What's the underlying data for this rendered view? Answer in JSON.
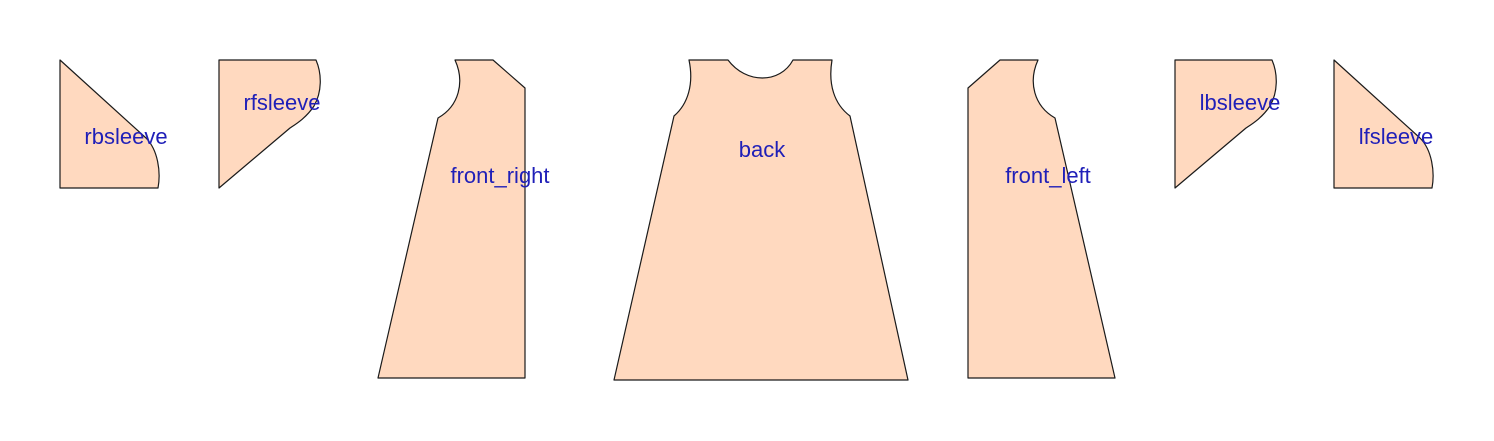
{
  "pieces": {
    "rbsleeve": {
      "label": "rbsleeve"
    },
    "rfsleeve": {
      "label": "rfsleeve"
    },
    "front_right": {
      "label": "front_right"
    },
    "back": {
      "label": "back"
    },
    "front_left": {
      "label": "front_left"
    },
    "lbsleeve": {
      "label": "lbsleeve"
    },
    "lfsleeve": {
      "label": "lfsleeve"
    }
  },
  "colors": {
    "fill": "#ffd9bf",
    "outline": "#1a1a1a",
    "label": "#1f1fb8",
    "background": "#ffffff"
  }
}
